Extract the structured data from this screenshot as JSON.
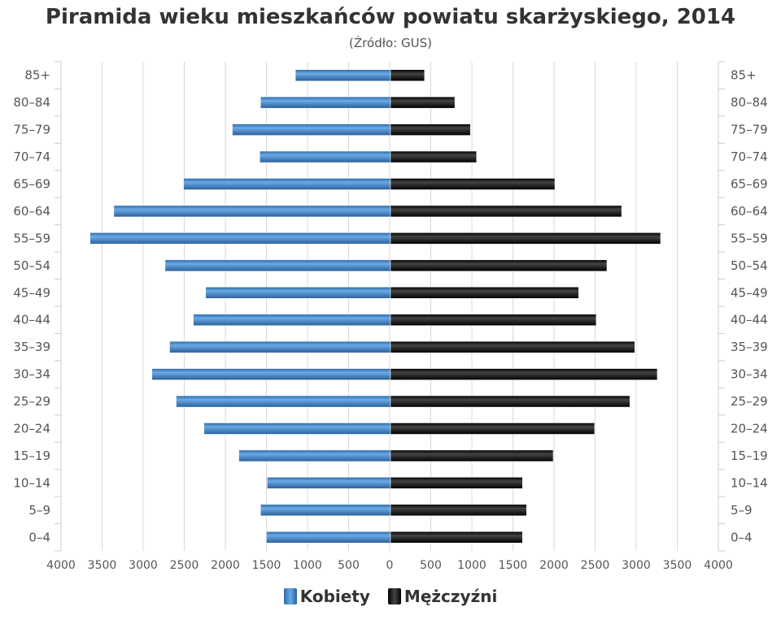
{
  "chart_data": {
    "type": "bar",
    "orientation": "horizontal-pyramid",
    "title": "Piramida wieku mieszkańców powiatu skarżyskiego, 2014",
    "subtitle": "(Źródło: GUS)",
    "categories": [
      "85+",
      "80-84",
      "75-79",
      "70-74",
      "65-69",
      "60-64",
      "55-59",
      "50-54",
      "45-49",
      "40-44",
      "35-39",
      "30-34",
      "25-29",
      "20-24",
      "15-19",
      "10-14",
      "5-9",
      "0-4"
    ],
    "series": [
      {
        "name": "Kobiety",
        "side": "left",
        "color": "#4a8cd0",
        "values": [
          1160,
          1585,
          1930,
          1595,
          2525,
          3375,
          3665,
          2750,
          2255,
          2405,
          2695,
          2910,
          2615,
          2275,
          1850,
          1505,
          1585,
          1515
        ]
      },
      {
        "name": "Mężczyźni",
        "side": "right",
        "color": "#1a1a1a",
        "values": [
          415,
          785,
          975,
          1050,
          2005,
          2820,
          3295,
          2640,
          2295,
          2510,
          2980,
          3255,
          2920,
          2490,
          1985,
          1610,
          1660,
          1610
        ]
      }
    ],
    "xlim": [
      -4000,
      4000
    ],
    "x_ticks": [
      "4000",
      "3500",
      "3000",
      "2500",
      "2000",
      "1500",
      "1000",
      "500",
      "0",
      "500",
      "1000",
      "1500",
      "2000",
      "2500",
      "3000",
      "3500",
      "4000"
    ],
    "grid": true,
    "legend": "bottom-center"
  }
}
